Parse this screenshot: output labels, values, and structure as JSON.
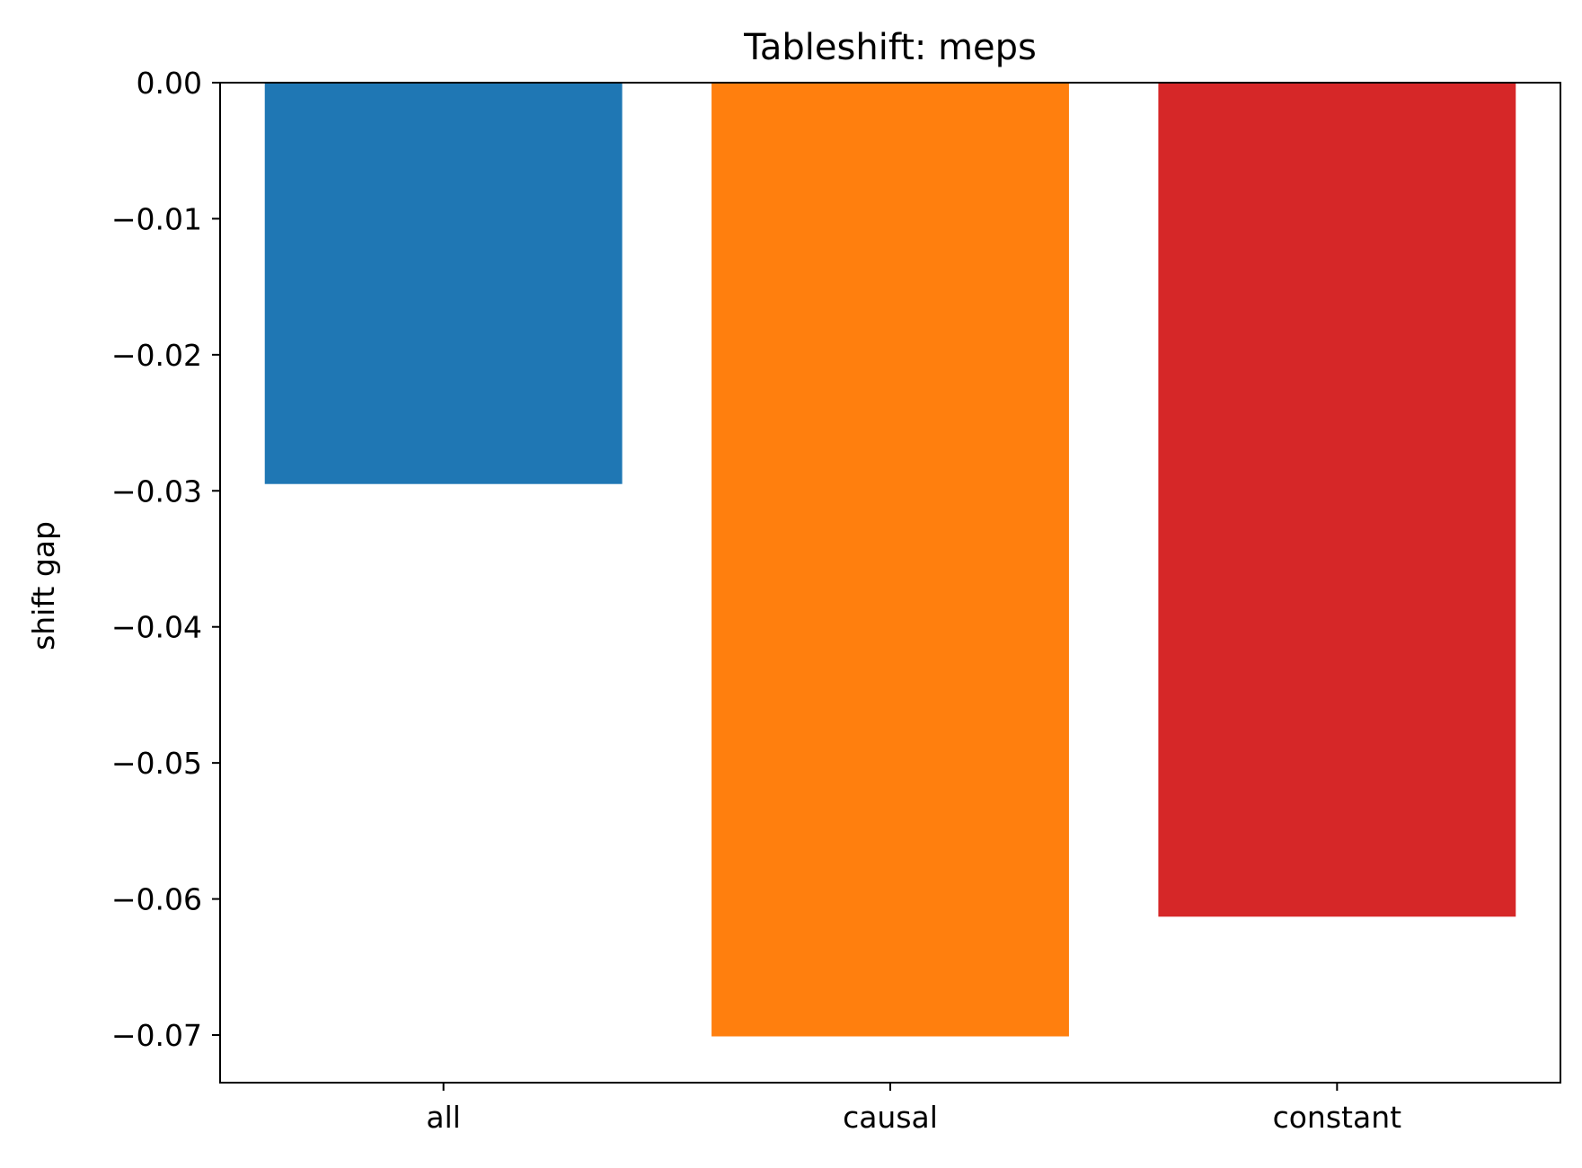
{
  "chart_data": {
    "type": "bar",
    "title": "Tableshift: meps",
    "xlabel": "",
    "ylabel": "shift gap",
    "categories": [
      "all",
      "causal",
      "constant"
    ],
    "values": [
      -0.0295,
      -0.0701,
      -0.0613
    ],
    "colors": [
      "#1f77b4",
      "#ff7f0e",
      "#d62728"
    ],
    "ylim": [
      -0.0735,
      0.0
    ],
    "yticks": [
      0.0,
      -0.01,
      -0.02,
      -0.03,
      -0.04,
      -0.05,
      -0.06,
      -0.07
    ],
    "ytick_labels": [
      "0.00",
      "−0.01",
      "−0.02",
      "−0.03",
      "−0.04",
      "−0.05",
      "−0.06",
      "−0.07"
    ],
    "grid": false,
    "legend": "none"
  }
}
